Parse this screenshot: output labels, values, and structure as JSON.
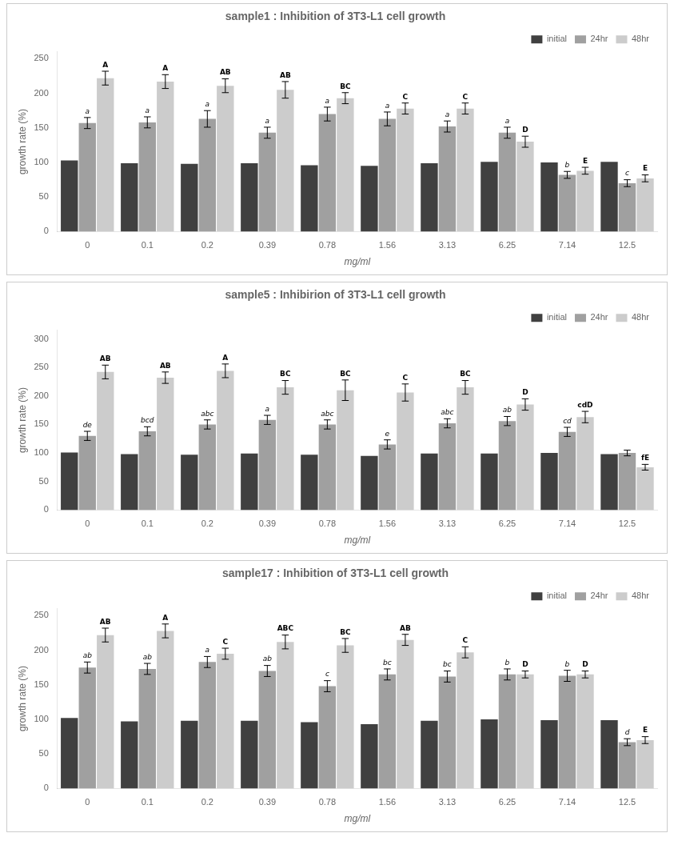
{
  "chart_data": [
    {
      "type": "bar",
      "title": "sample1 : Inhibition of 3T3-L1 cell growth",
      "xlabel": "mg/ml",
      "ylabel": "growth rate (%)",
      "categories": [
        "0",
        "0.1",
        "0.2",
        "0.39",
        "0.78",
        "1.56",
        "3.13",
        "6.25",
        "7.14",
        "12.5"
      ],
      "series": [
        {
          "name": "initial",
          "color": "#404040",
          "values": [
            103,
            99,
            98,
            99,
            96,
            95,
            99,
            101,
            100,
            101
          ]
        },
        {
          "name": "24hr",
          "color": "#a0a0a0",
          "values": [
            157,
            158,
            163,
            143,
            170,
            163,
            152,
            143,
            82,
            70
          ],
          "errors": [
            8,
            8,
            12,
            8,
            10,
            10,
            8,
            8,
            5,
            5
          ],
          "annotations": [
            "a",
            "a",
            "a",
            "a",
            "a",
            "a",
            "a",
            "a",
            "b",
            "c"
          ]
        },
        {
          "name": "48hr",
          "color": "#cccccc",
          "values": [
            222,
            217,
            211,
            205,
            193,
            178,
            178,
            130,
            88,
            77
          ],
          "errors": [
            10,
            10,
            10,
            12,
            8,
            8,
            8,
            8,
            5,
            5
          ],
          "annotations": [
            "A",
            "A",
            "AB",
            "AB",
            "BC",
            "C",
            "C",
            "D",
            "E",
            "E"
          ]
        }
      ],
      "ylim": [
        0,
        260
      ],
      "yticks": [
        0,
        50,
        100,
        150,
        200,
        250
      ],
      "grid": false,
      "legend": "upper right"
    },
    {
      "type": "bar",
      "title": "sample5 : Inhibirion of 3T3-L1 cell growth",
      "xlabel": "mg/ml",
      "ylabel": "growth rate (%)",
      "categories": [
        "0",
        "0.1",
        "0.2",
        "0.39",
        "0.78",
        "1.56",
        "3.13",
        "6.25",
        "7.14",
        "12.5"
      ],
      "series": [
        {
          "name": "initial",
          "color": "#404040",
          "values": [
            101,
            98,
            97,
            99,
            97,
            95,
            99,
            99,
            100,
            98
          ]
        },
        {
          "name": "24hr",
          "color": "#a0a0a0",
          "values": [
            130,
            138,
            150,
            158,
            150,
            115,
            152,
            156,
            137,
            100
          ],
          "errors": [
            8,
            8,
            8,
            8,
            8,
            8,
            8,
            8,
            8,
            5
          ],
          "annotations": [
            "de",
            "bcd",
            "abc",
            "a",
            "abc",
            "e",
            "abc",
            "ab",
            "cd",
            null
          ]
        },
        {
          "name": "48hr",
          "color": "#cccccc",
          "values": [
            242,
            232,
            244,
            215,
            210,
            206,
            215,
            185,
            163,
            75
          ],
          "errors": [
            12,
            10,
            12,
            12,
            18,
            15,
            12,
            10,
            10,
            5
          ],
          "annotations": [
            "AB",
            "AB",
            "A",
            "BC",
            "BC",
            "C",
            "BC",
            "D",
            "cdD",
            "fE"
          ]
        }
      ],
      "ylim": [
        0,
        315
      ],
      "yticks": [
        0,
        50,
        100,
        150,
        200,
        250,
        300
      ],
      "grid": false,
      "legend": "upper right"
    },
    {
      "type": "bar",
      "title": "sample17 : Inhibition of 3T3-L1 cell growth",
      "xlabel": "mg/ml",
      "ylabel": "growth rate (%)",
      "categories": [
        "0",
        "0.1",
        "0.2",
        "0.39",
        "0.78",
        "1.56",
        "3.13",
        "6.25",
        "7.14",
        "12.5"
      ],
      "series": [
        {
          "name": "initial",
          "color": "#404040",
          "values": [
            102,
            97,
            98,
            98,
            96,
            93,
            98,
            100,
            99,
            99
          ]
        },
        {
          "name": "24hr",
          "color": "#a0a0a0",
          "values": [
            175,
            173,
            183,
            170,
            148,
            165,
            162,
            165,
            163,
            67
          ],
          "errors": [
            8,
            8,
            8,
            8,
            8,
            8,
            8,
            8,
            8,
            5
          ],
          "annotations": [
            "ab",
            "ab",
            "a",
            "ab",
            "c",
            "bc",
            "bc",
            "b",
            "b",
            "d"
          ]
        },
        {
          "name": "48hr",
          "color": "#cccccc",
          "values": [
            222,
            228,
            195,
            212,
            207,
            215,
            197,
            165,
            165,
            70
          ],
          "errors": [
            10,
            10,
            8,
            10,
            10,
            8,
            8,
            5,
            5,
            5
          ],
          "annotations": [
            "AB",
            "A",
            "C",
            "ABC",
            "BC",
            "AB",
            "C",
            "D",
            "D",
            "E"
          ]
        }
      ],
      "ylim": [
        0,
        260
      ],
      "yticks": [
        0,
        50,
        100,
        150,
        200,
        250
      ],
      "grid": false,
      "legend": "upper right"
    }
  ]
}
